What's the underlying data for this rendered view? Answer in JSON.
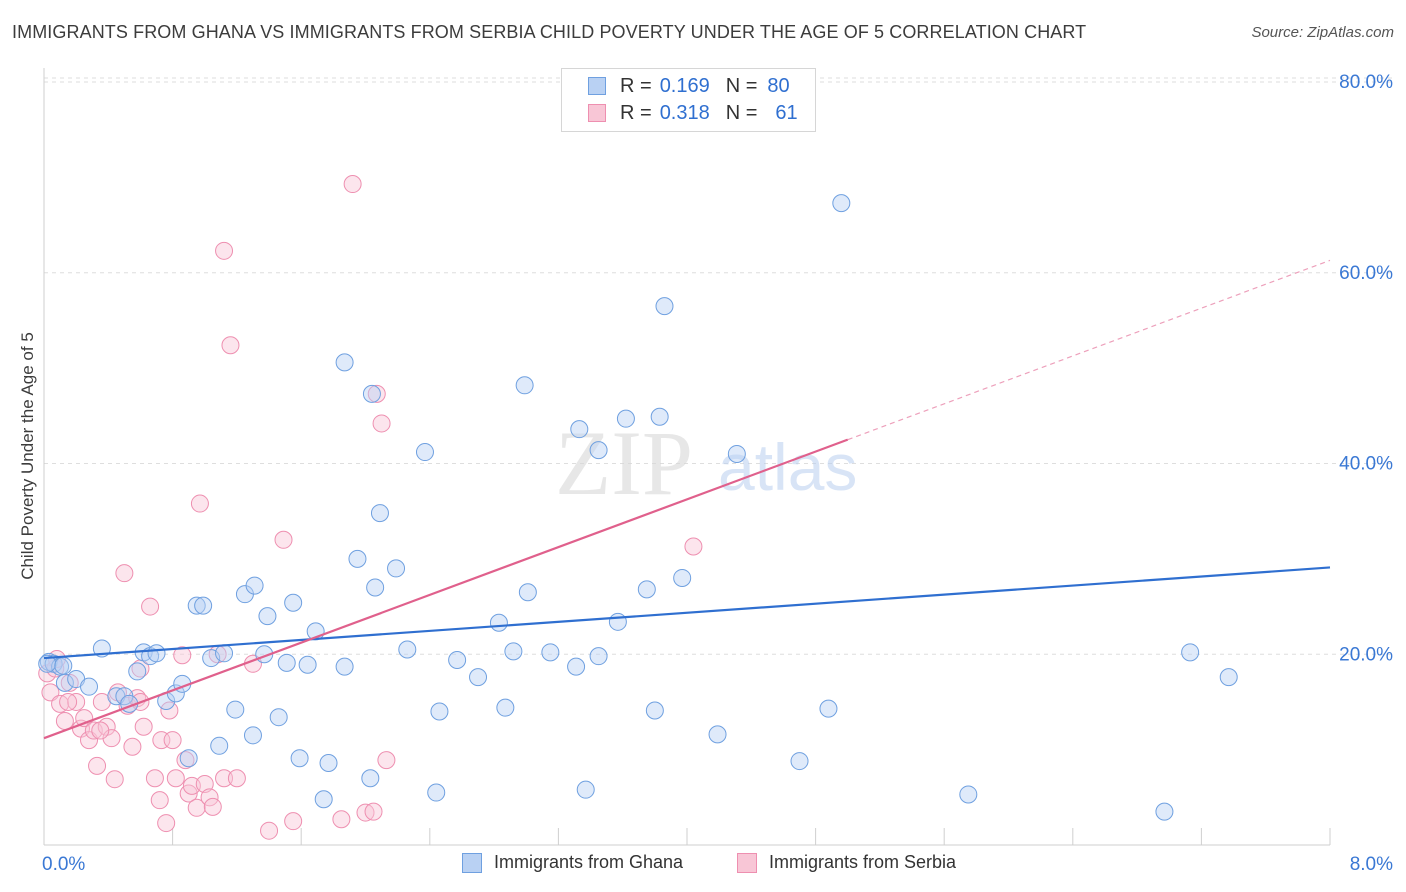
{
  "header": {
    "title": "IMMIGRANTS FROM GHANA VS IMMIGRANTS FROM SERBIA CHILD POVERTY UNDER THE AGE OF 5 CORRELATION CHART",
    "source": "Source: ZipAtlas.com"
  },
  "watermark": {
    "zip": "ZIP",
    "atlas": "atlas"
  },
  "legend": {
    "r_label": "R =",
    "n_label": "N =",
    "ghana": {
      "r": "0.169",
      "n": "80",
      "color": "#6fa0e0",
      "fill": "#b9d1f3"
    },
    "serbia": {
      "r": "0.318",
      "n": "61",
      "color": "#ee8fb0",
      "fill": "#f8c6d6"
    }
  },
  "bottom_legend": {
    "ghana_label": "Immigrants from Ghana",
    "serbia_label": "Immigrants from Serbia"
  },
  "chart_data": {
    "type": "scatter",
    "title": "IMMIGRANTS FROM GHANA VS IMMIGRANTS FROM SERBIA CHILD POVERTY UNDER THE AGE OF 5 CORRELATION CHART",
    "xlabel": "",
    "ylabel": "Child Poverty Under the Age of 5",
    "xlim": [
      0,
      8
    ],
    "ylim": [
      0,
      80
    ],
    "x_tick_labels": [
      "0.0%",
      "8.0%"
    ],
    "y_tick_labels": [
      "20.0%",
      "40.0%",
      "60.0%",
      "80.0%"
    ],
    "y_ticks": [
      20,
      40,
      60,
      80
    ],
    "grid": true,
    "legend_position": "top-center",
    "series": [
      {
        "name": "Immigrants from Ghana",
        "color": "#3a78d4",
        "r": 0.169,
        "n": 80,
        "trend": {
          "x": [
            0,
            8
          ],
          "y": [
            19.6,
            29.1
          ],
          "style": "solid"
        },
        "points": [
          [
            0.03,
            19.2
          ],
          [
            0.06,
            19.0
          ],
          [
            0.1,
            18.7
          ],
          [
            0.13,
            17.0
          ],
          [
            0.2,
            17.4
          ],
          [
            0.28,
            16.6
          ],
          [
            0.36,
            20.6
          ],
          [
            0.45,
            15.6
          ],
          [
            0.5,
            15.6
          ],
          [
            0.53,
            14.8
          ],
          [
            0.58,
            18.2
          ],
          [
            0.62,
            20.2
          ],
          [
            0.66,
            19.8
          ],
          [
            0.7,
            20.1
          ],
          [
            0.76,
            15.1
          ],
          [
            0.82,
            15.9
          ],
          [
            0.86,
            16.9
          ],
          [
            0.95,
            25.1
          ],
          [
            0.99,
            25.1
          ],
          [
            1.04,
            19.6
          ],
          [
            1.12,
            20.1
          ],
          [
            0.9,
            9.1
          ],
          [
            1.09,
            10.4
          ],
          [
            1.19,
            14.2
          ],
          [
            1.25,
            26.3
          ],
          [
            1.31,
            27.2
          ],
          [
            1.37,
            20.0
          ],
          [
            1.39,
            24.0
          ],
          [
            1.3,
            11.5
          ],
          [
            1.46,
            13.4
          ],
          [
            1.51,
            19.1
          ],
          [
            1.55,
            25.4
          ],
          [
            1.64,
            18.9
          ],
          [
            1.69,
            22.4
          ],
          [
            1.59,
            9.1
          ],
          [
            1.74,
            4.8
          ],
          [
            1.77,
            8.6
          ],
          [
            1.87,
            50.6
          ],
          [
            1.87,
            18.7
          ],
          [
            1.95,
            30.0
          ],
          [
            2.04,
            47.3
          ],
          [
            2.09,
            34.8
          ],
          [
            2.19,
            29.0
          ],
          [
            2.06,
            27.0
          ],
          [
            2.03,
            7.0
          ],
          [
            2.26,
            20.5
          ],
          [
            2.37,
            41.2
          ],
          [
            2.44,
            5.5
          ],
          [
            2.46,
            14.0
          ],
          [
            2.57,
            19.4
          ],
          [
            2.7,
            17.6
          ],
          [
            2.83,
            23.3
          ],
          [
            2.87,
            14.4
          ],
          [
            2.92,
            20.3
          ],
          [
            2.99,
            48.2
          ],
          [
            3.01,
            26.5
          ],
          [
            3.15,
            20.2
          ],
          [
            3.31,
            18.7
          ],
          [
            3.33,
            43.6
          ],
          [
            3.45,
            41.4
          ],
          [
            3.45,
            19.8
          ],
          [
            3.37,
            5.8
          ],
          [
            3.57,
            23.4
          ],
          [
            3.62,
            44.7
          ],
          [
            3.75,
            26.8
          ],
          [
            3.83,
            44.9
          ],
          [
            3.8,
            14.1
          ],
          [
            3.86,
            56.5
          ],
          [
            3.97,
            28.0
          ],
          [
            4.19,
            11.6
          ],
          [
            4.31,
            41.0
          ],
          [
            4.7,
            8.8
          ],
          [
            4.88,
            14.3
          ],
          [
            4.96,
            67.3
          ],
          [
            5.75,
            5.3
          ],
          [
            6.97,
            3.5
          ],
          [
            7.13,
            20.2
          ],
          [
            7.37,
            17.6
          ],
          [
            0.02,
            19.0
          ],
          [
            0.12,
            18.8
          ]
        ]
      },
      {
        "name": "Immigrants from Serbia",
        "color": "#e0608c",
        "r": 0.318,
        "n": 61,
        "trend": {
          "x": [
            0,
            5.0
          ],
          "y": [
            11.2,
            42.5
          ],
          "style": "solid",
          "extend_to_x": 8,
          "extend_to_y": 61.3
        },
        "points": [
          [
            0.02,
            18.0
          ],
          [
            0.04,
            16.0
          ],
          [
            0.07,
            18.5
          ],
          [
            0.1,
            14.8
          ],
          [
            0.13,
            13.0
          ],
          [
            0.16,
            17.0
          ],
          [
            0.2,
            15.0
          ],
          [
            0.23,
            12.2
          ],
          [
            0.25,
            13.3
          ],
          [
            0.28,
            11.0
          ],
          [
            0.31,
            12.0
          ],
          [
            0.33,
            8.3
          ],
          [
            0.36,
            15.0
          ],
          [
            0.39,
            12.4
          ],
          [
            0.42,
            11.2
          ],
          [
            0.44,
            6.9
          ],
          [
            0.46,
            16.0
          ],
          [
            0.5,
            28.5
          ],
          [
            0.52,
            14.6
          ],
          [
            0.55,
            10.3
          ],
          [
            0.58,
            15.4
          ],
          [
            0.6,
            18.5
          ],
          [
            0.62,
            12.4
          ],
          [
            0.66,
            25.0
          ],
          [
            0.69,
            7.0
          ],
          [
            0.72,
            4.7
          ],
          [
            0.73,
            11.0
          ],
          [
            0.76,
            2.3
          ],
          [
            0.78,
            14.1
          ],
          [
            0.8,
            11.0
          ],
          [
            0.82,
            7.0
          ],
          [
            0.86,
            19.9
          ],
          [
            0.88,
            8.9
          ],
          [
            0.9,
            5.4
          ],
          [
            0.92,
            6.2
          ],
          [
            0.95,
            3.9
          ],
          [
            0.97,
            35.8
          ],
          [
            1.0,
            6.4
          ],
          [
            1.03,
            5.0
          ],
          [
            1.05,
            4.0
          ],
          [
            1.08,
            20.0
          ],
          [
            1.12,
            7.0
          ],
          [
            1.12,
            62.3
          ],
          [
            1.16,
            52.4
          ],
          [
            1.2,
            7.0
          ],
          [
            1.3,
            19.0
          ],
          [
            1.4,
            1.5
          ],
          [
            1.49,
            32.0
          ],
          [
            1.55,
            2.5
          ],
          [
            1.85,
            2.7
          ],
          [
            1.92,
            69.3
          ],
          [
            2.0,
            3.4
          ],
          [
            2.05,
            3.5
          ],
          [
            2.07,
            47.3
          ],
          [
            2.1,
            44.2
          ],
          [
            2.13,
            8.9
          ],
          [
            4.04,
            31.3
          ],
          [
            0.08,
            19.5
          ],
          [
            0.15,
            15.0
          ],
          [
            0.35,
            12.0
          ],
          [
            0.6,
            15.0
          ]
        ]
      }
    ]
  }
}
